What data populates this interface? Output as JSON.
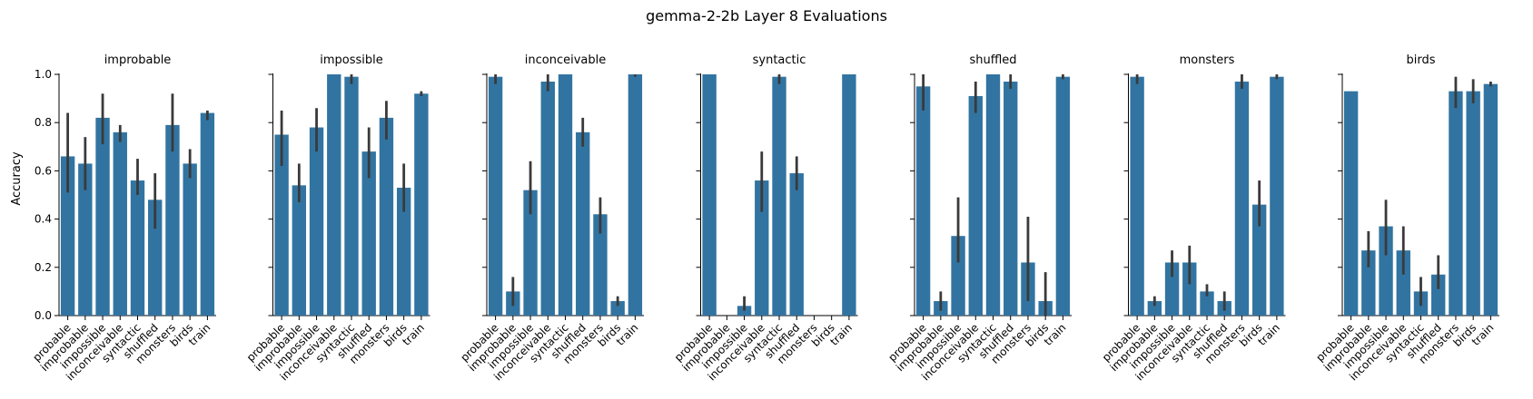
{
  "figure": {
    "title": "gemma-2-2b Layer 8 Evaluations",
    "ylabel": "Accuracy",
    "bar_color": "#3274a1",
    "error_color": "#3a3a3a"
  },
  "chart_data": {
    "type": "bar",
    "categories": [
      "probable",
      "improbable",
      "impossible",
      "inconceivable",
      "syntactic",
      "shuffled",
      "monsters",
      "birds",
      "train"
    ],
    "ylim": [
      0,
      1.0
    ],
    "yticks": [
      "0.0",
      "0.2",
      "0.4",
      "0.6",
      "0.8",
      "1.0"
    ],
    "ytick_values": [
      0,
      0.2,
      0.4,
      0.6,
      0.8,
      1.0
    ],
    "panels": [
      {
        "title": "improbable",
        "values": [
          0.66,
          0.63,
          0.82,
          0.76,
          0.56,
          0.48,
          0.79,
          0.63,
          0.84
        ],
        "err_low": [
          0.51,
          0.52,
          0.71,
          0.72,
          0.5,
          0.36,
          0.68,
          0.57,
          0.81
        ],
        "err_high": [
          0.84,
          0.74,
          0.92,
          0.79,
          0.65,
          0.59,
          0.92,
          0.69,
          0.85
        ]
      },
      {
        "title": "impossible",
        "values": [
          0.75,
          0.54,
          0.78,
          1.0,
          0.99,
          0.68,
          0.82,
          0.53,
          0.92
        ],
        "err_low": [
          0.62,
          0.47,
          0.68,
          1.0,
          0.96,
          0.57,
          0.73,
          0.43,
          0.91
        ],
        "err_high": [
          0.85,
          0.63,
          0.86,
          1.0,
          1.0,
          0.78,
          0.89,
          0.63,
          0.93
        ]
      },
      {
        "title": "inconceivable",
        "values": [
          0.99,
          0.1,
          0.52,
          0.97,
          1.0,
          0.76,
          0.42,
          0.06,
          1.0
        ],
        "err_low": [
          0.96,
          0.04,
          0.42,
          0.93,
          1.0,
          0.7,
          0.34,
          0.04,
          0.99
        ],
        "err_high": [
          1.0,
          0.16,
          0.64,
          1.0,
          1.0,
          0.82,
          0.49,
          0.08,
          1.0
        ]
      },
      {
        "title": "syntactic",
        "values": [
          1.0,
          0,
          0.04,
          0.56,
          0.99,
          0.59,
          0,
          0,
          1.0
        ],
        "err_low": [
          1.0,
          0,
          0.02,
          0.43,
          0.96,
          0.52,
          0,
          0,
          1.0
        ],
        "err_high": [
          1.0,
          0,
          0.08,
          0.68,
          1.0,
          0.66,
          0,
          0,
          1.0
        ]
      },
      {
        "title": "shuffled",
        "values": [
          0.95,
          0.06,
          0.33,
          0.91,
          1.0,
          0.97,
          0.22,
          0.06,
          0.99
        ],
        "err_low": [
          0.85,
          0.02,
          0.22,
          0.84,
          1.0,
          0.94,
          0.06,
          0.0,
          0.98
        ],
        "err_high": [
          1.0,
          0.1,
          0.49,
          0.97,
          1.0,
          1.0,
          0.41,
          0.18,
          1.0
        ]
      },
      {
        "title": "monsters",
        "values": [
          0.99,
          0.06,
          0.22,
          0.22,
          0.1,
          0.06,
          0.97,
          0.46,
          0.99
        ],
        "err_low": [
          0.96,
          0.04,
          0.16,
          0.13,
          0.08,
          0.02,
          0.94,
          0.37,
          0.98
        ],
        "err_high": [
          1.0,
          0.08,
          0.27,
          0.29,
          0.13,
          0.1,
          1.0,
          0.56,
          1.0
        ]
      },
      {
        "title": "birds",
        "values": [
          0.93,
          0.27,
          0.37,
          0.27,
          0.1,
          0.17,
          0.93,
          0.93,
          0.96
        ],
        "err_low": [
          0.93,
          0.2,
          0.25,
          0.17,
          0.04,
          0.11,
          0.86,
          0.88,
          0.95
        ],
        "err_high": [
          0.93,
          0.35,
          0.48,
          0.37,
          0.16,
          0.25,
          0.99,
          0.98,
          0.97
        ]
      }
    ]
  }
}
